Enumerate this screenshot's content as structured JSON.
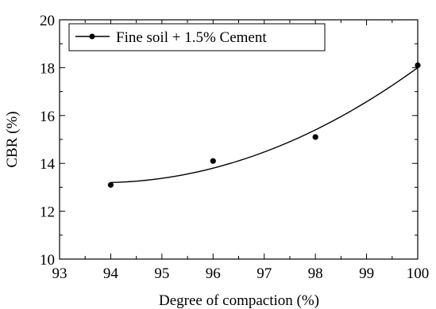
{
  "chart_data": {
    "type": "scatter",
    "xlabel": "Degree of compaction (%)",
    "ylabel": "CBR (%)",
    "xlim": [
      93,
      100
    ],
    "ylim": [
      10,
      20
    ],
    "xticks": [
      "93",
      "94",
      "95",
      "96",
      "97",
      "98",
      "99",
      "100"
    ],
    "yticks": [
      "10",
      "12",
      "14",
      "16",
      "18",
      "20"
    ],
    "grid": false,
    "legend_position": "top-left",
    "series": [
      {
        "name": "Fine soil + 1.5% Cement",
        "x": [
          94,
          96,
          98,
          100
        ],
        "y": [
          13.1,
          14.1,
          15.1,
          18.1
        ],
        "trendline": "smooth curve"
      }
    ]
  }
}
